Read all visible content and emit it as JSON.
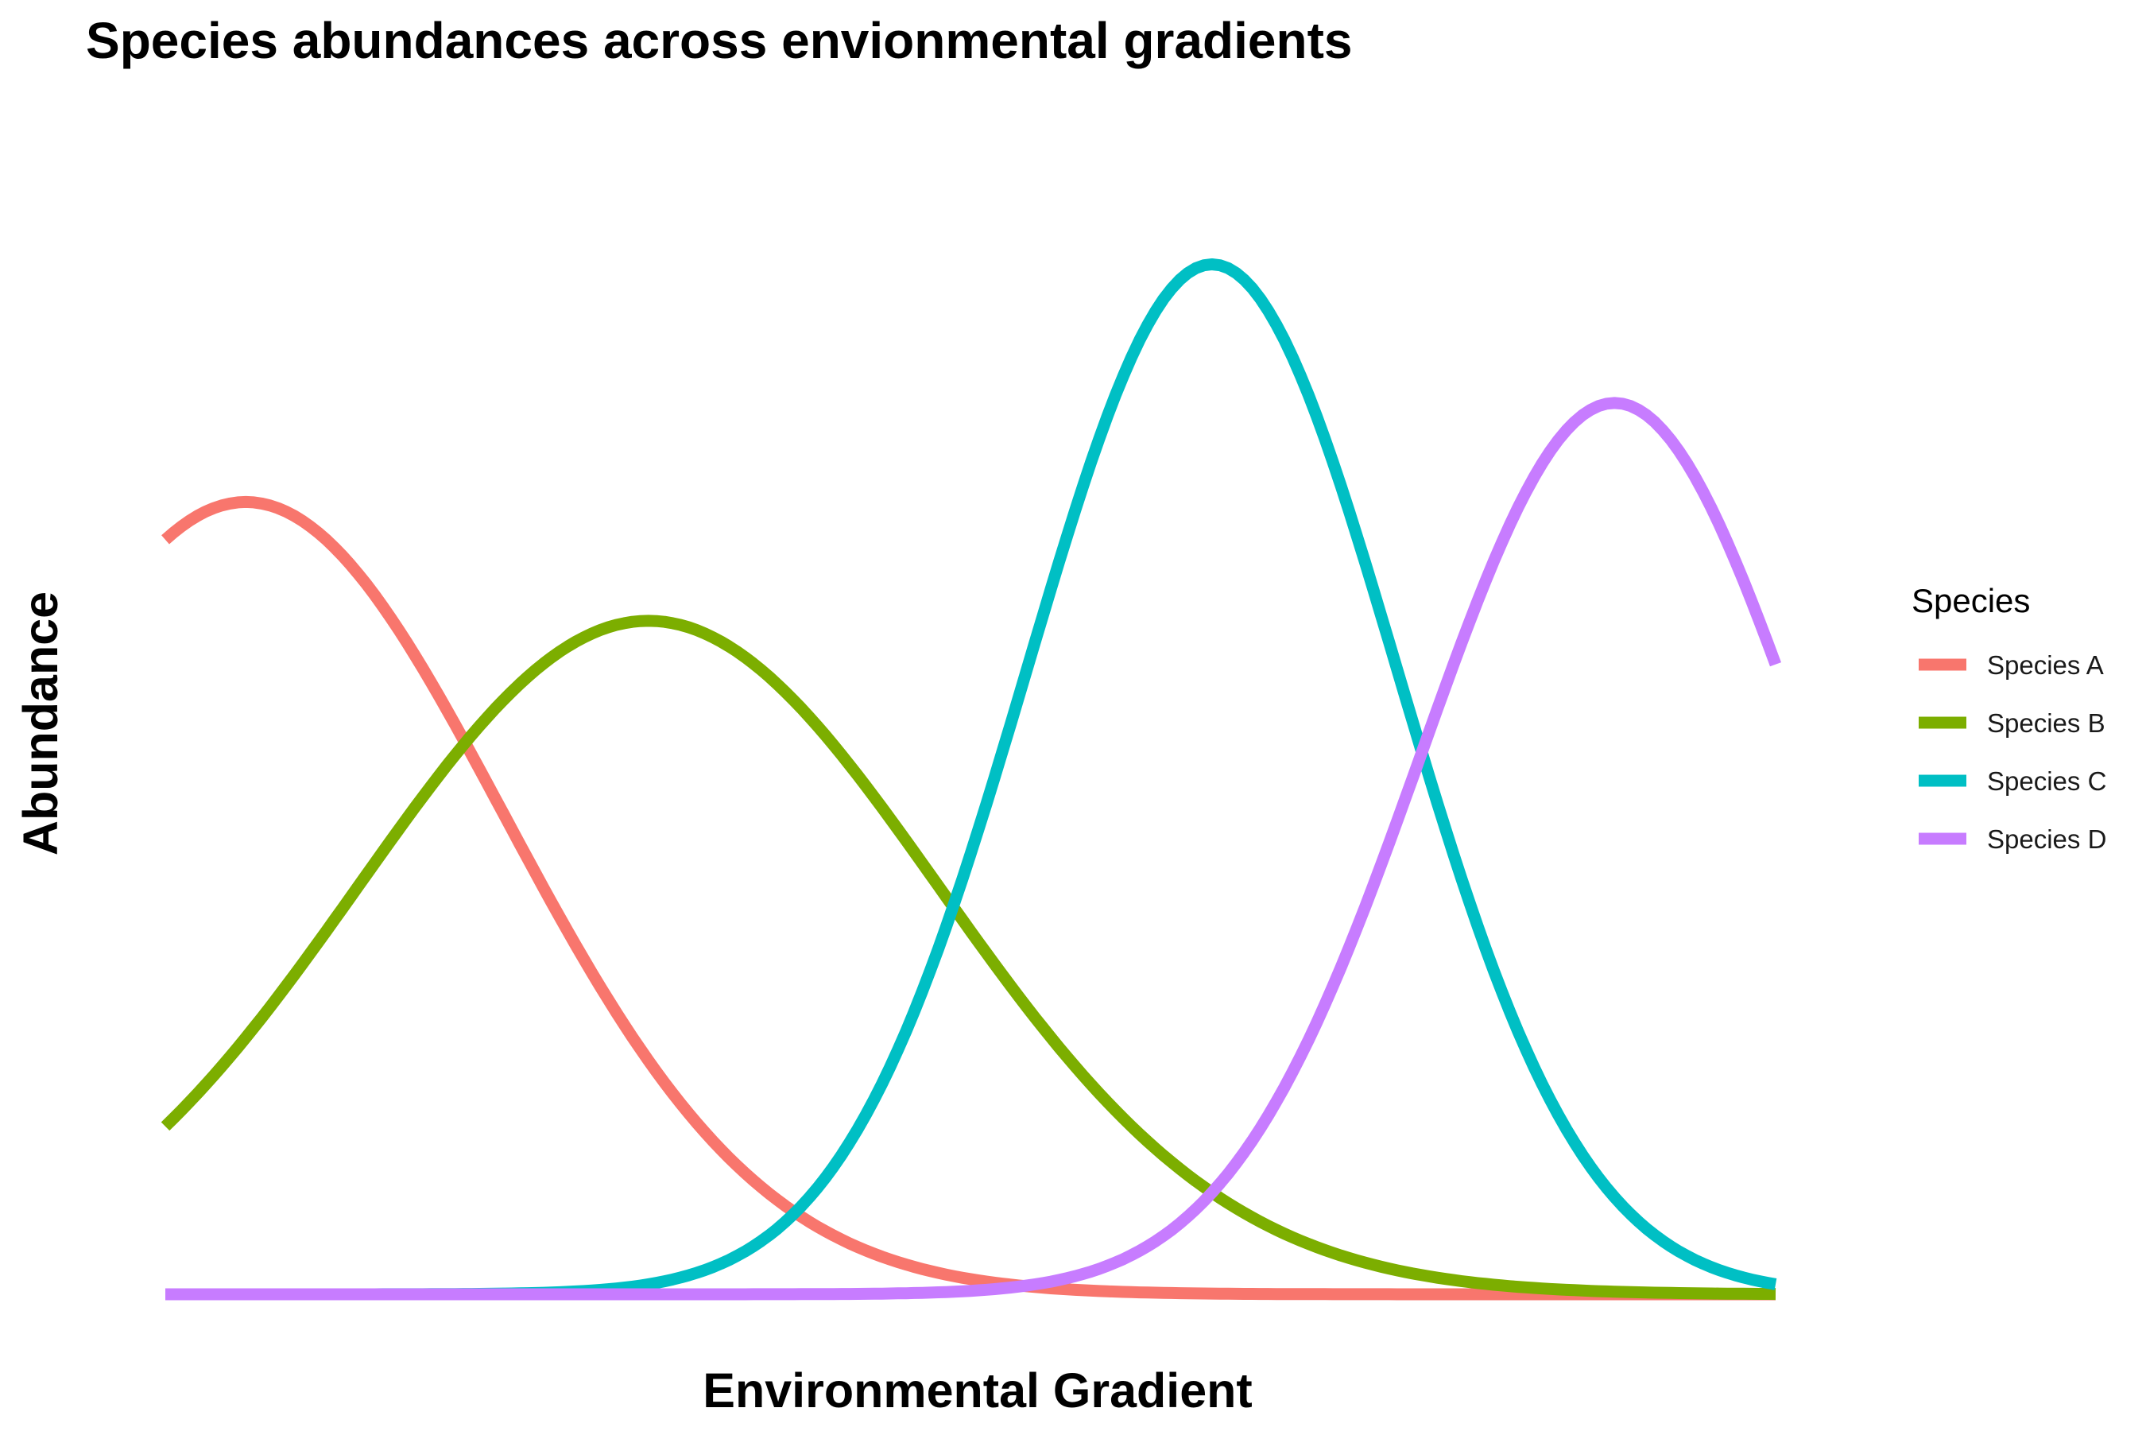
{
  "chart_data": {
    "type": "line",
    "title": "Species abundances across envionmental gradients",
    "xlabel": "Environmental Gradient",
    "ylabel": "Abundance",
    "xlim": [
      0,
      10
    ],
    "ylim": [
      0,
      1.05
    ],
    "grid": false,
    "axis_ticks": false,
    "legend": {
      "title": "Species",
      "position": "right"
    },
    "series": [
      {
        "name": "Species A",
        "color": "#F8766D",
        "mean": 0.5,
        "sd": 1.6,
        "peak": 0.8,
        "x": [
          0,
          0.5,
          1,
          1.5,
          2,
          2.5,
          3,
          3.5,
          4,
          4.5,
          5,
          5.5,
          6,
          6.5,
          7,
          7.5,
          8,
          8.5,
          9,
          9.5,
          10
        ],
        "y": [
          0.765,
          0.8,
          0.765,
          0.67,
          0.54,
          0.4,
          0.27,
          0.17,
          0.095,
          0.049,
          0.023,
          0.0096,
          0.0037,
          0.0013,
          0.0004,
          0.0001,
          0,
          0,
          0,
          0,
          0
        ]
      },
      {
        "name": "Species B",
        "color": "#7CAE00",
        "mean": 3.0,
        "sd": 1.8,
        "peak": 0.68,
        "x": [
          0,
          0.5,
          1,
          1.5,
          2,
          2.5,
          3,
          3.5,
          4,
          4.5,
          5,
          5.5,
          6,
          6.5,
          7,
          7.5,
          8,
          8.5,
          9,
          9.5,
          10
        ],
        "y": [
          0.22,
          0.33,
          0.46,
          0.57,
          0.65,
          0.67,
          0.68,
          0.66,
          0.6,
          0.51,
          0.4,
          0.29,
          0.2,
          0.13,
          0.08,
          0.045,
          0.025,
          0.013,
          0.006,
          0.003,
          0.001
        ]
      },
      {
        "name": "Species C",
        "color": "#00BFC4",
        "mean": 6.5,
        "sd": 1.15,
        "peak": 1.04,
        "x": [
          0,
          0.5,
          1,
          1.5,
          2,
          2.5,
          3,
          3.5,
          4,
          4.5,
          5,
          5.5,
          6,
          6.5,
          7,
          7.5,
          8,
          8.5,
          9,
          9.5,
          10
        ],
        "y": [
          0,
          0,
          0,
          0.0001,
          0.0009,
          0.0025,
          0.01,
          0.035,
          0.098,
          0.23,
          0.44,
          0.72,
          0.95,
          1.04,
          0.95,
          0.72,
          0.44,
          0.23,
          0.098,
          0.05,
          0.03
        ]
      },
      {
        "name": "Species D",
        "color": "#C77CFF",
        "mean": 9.0,
        "sd": 1.2,
        "peak": 0.9,
        "x": [
          0,
          0.5,
          1,
          1.5,
          2,
          2.5,
          3,
          3.5,
          4,
          4.5,
          5,
          5.5,
          6,
          6.5,
          7,
          7.5,
          8,
          8.5,
          9,
          9.5,
          10
        ],
        "y": [
          0,
          0,
          0,
          0,
          0,
          0,
          0,
          0,
          0.002,
          0.008,
          0.03,
          0.06,
          0.15,
          0.3,
          0.47,
          0.63,
          0.76,
          0.86,
          0.9,
          0.86,
          0.72
        ]
      }
    ]
  }
}
